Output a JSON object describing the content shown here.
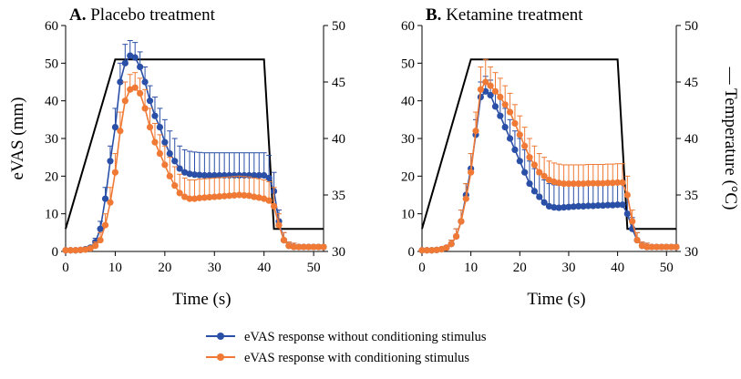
{
  "chart_data": [
    {
      "type": "line",
      "panel_letter": "A.",
      "title": "Placebo treatment",
      "xlabel": "Time (s)",
      "ylabel": "eVAS (mm)",
      "y2label": "— Temperature (°C)",
      "xlim": [
        0,
        52
      ],
      "ylim": [
        0,
        60
      ],
      "y2lim": [
        30,
        50
      ],
      "xticks": [
        0,
        10,
        20,
        30,
        40,
        50
      ],
      "yticks": [
        0,
        10,
        20,
        30,
        40,
        50,
        60
      ],
      "y2ticks": [
        30,
        35,
        40,
        45,
        50
      ],
      "series": [
        {
          "name": "eVAS response without conditioning stimulus",
          "color": "#2a4fa6",
          "x": [
            0,
            1,
            2,
            3,
            4,
            5,
            6,
            7,
            8,
            9,
            10,
            11,
            12,
            13,
            14,
            15,
            16,
            17,
            18,
            19,
            20,
            21,
            22,
            23,
            24,
            25,
            26,
            27,
            28,
            29,
            30,
            31,
            32,
            33,
            34,
            35,
            36,
            37,
            38,
            39,
            40,
            41,
            42,
            43,
            44,
            45,
            46,
            47,
            48,
            49,
            50,
            51,
            52
          ],
          "y": [
            0.3,
            0.3,
            0.3,
            0.4,
            0.6,
            1.0,
            2.5,
            6,
            14,
            24,
            33,
            45,
            50,
            52,
            51.5,
            49,
            45,
            40,
            36,
            33,
            29,
            26,
            24,
            22,
            21,
            20.6,
            20.4,
            20.3,
            20.2,
            20.2,
            20.2,
            20.2,
            20.2,
            20.2,
            20.2,
            20.2,
            20.2,
            20.2,
            20.2,
            20.2,
            20.2,
            19.5,
            16,
            8,
            3,
            1.5,
            1.2,
            1.2,
            1.2,
            1.2,
            1.2,
            1.2,
            1.2
          ],
          "err": [
            0,
            0,
            0,
            0,
            0.3,
            0.5,
            1,
            2,
            3,
            4,
            5,
            5,
            5,
            4,
            4,
            4,
            4,
            4,
            5,
            5,
            6,
            6,
            6,
            6,
            6,
            6,
            6,
            6,
            6,
            6,
            6,
            6,
            6,
            6,
            6,
            6,
            6,
            6,
            6,
            6,
            6,
            6,
            5,
            3,
            2,
            1,
            1,
            0.5,
            0.5,
            0.5,
            0.5,
            0.5,
            0.5
          ]
        },
        {
          "name": "eVAS response with conditioning stimulus",
          "color": "#f07a35",
          "x": [
            0,
            1,
            2,
            3,
            4,
            5,
            6,
            7,
            8,
            9,
            10,
            11,
            12,
            13,
            14,
            15,
            16,
            17,
            18,
            19,
            20,
            21,
            22,
            23,
            24,
            25,
            26,
            27,
            28,
            29,
            30,
            31,
            32,
            33,
            34,
            35,
            36,
            37,
            38,
            39,
            40,
            41,
            42,
            43,
            44,
            45,
            46,
            47,
            48,
            49,
            50,
            51,
            52
          ],
          "y": [
            0.3,
            0.3,
            0.3,
            0.4,
            0.5,
            0.8,
            1.5,
            3,
            7,
            13,
            21,
            32,
            40,
            43,
            43.5,
            42,
            38,
            33,
            29,
            26,
            23,
            20,
            17.5,
            15.5,
            14.5,
            14.0,
            14.0,
            14.2,
            14.3,
            14.4,
            14.5,
            14.6,
            14.7,
            14.8,
            14.9,
            15.0,
            14.9,
            14.8,
            14.5,
            14.3,
            14.0,
            13.5,
            12,
            7,
            3,
            1.5,
            1.2,
            1.2,
            1.2,
            1.2,
            1.2,
            1.2,
            1.2
          ],
          "err": [
            0,
            0,
            0,
            0,
            0.3,
            0.5,
            1,
            2,
            3,
            4,
            5,
            5,
            5,
            4,
            4,
            4,
            5,
            5,
            5,
            5,
            5,
            5,
            5,
            5,
            5,
            5,
            5,
            5,
            5,
            5,
            5,
            5,
            5,
            5,
            5,
            5,
            5,
            5,
            5,
            5,
            5,
            5,
            5,
            3,
            2,
            1,
            1,
            0.5,
            0.5,
            0.5,
            0.5,
            0.5,
            0.5
          ]
        },
        {
          "name": "Temperature",
          "axis": "right",
          "color": "#000000",
          "x": [
            0,
            10,
            40,
            42,
            52
          ],
          "y": [
            32,
            47,
            47,
            32,
            32
          ]
        }
      ]
    },
    {
      "type": "line",
      "panel_letter": "B.",
      "title": "Ketamine treatment",
      "xlabel": "Time (s)",
      "ylabel": "",
      "y2label": "— Temperature (°C)",
      "xlim": [
        0,
        52
      ],
      "ylim": [
        0,
        60
      ],
      "y2lim": [
        30,
        50
      ],
      "xticks": [
        0,
        10,
        20,
        30,
        40,
        50
      ],
      "yticks": [
        0,
        10,
        20,
        30,
        40,
        50,
        60
      ],
      "y2ticks": [
        30,
        35,
        40,
        45,
        50
      ],
      "series": [
        {
          "name": "eVAS response without conditioning stimulus",
          "color": "#2a4fa6",
          "x": [
            0,
            1,
            2,
            3,
            4,
            5,
            6,
            7,
            8,
            9,
            10,
            11,
            12,
            13,
            14,
            15,
            16,
            17,
            18,
            19,
            20,
            21,
            22,
            23,
            24,
            25,
            26,
            27,
            28,
            29,
            30,
            31,
            32,
            33,
            34,
            35,
            36,
            37,
            38,
            39,
            40,
            41,
            42,
            43,
            44,
            45,
            46,
            47,
            48,
            49,
            50,
            51,
            52
          ],
          "y": [
            0.3,
            0.3,
            0.3,
            0.4,
            0.6,
            1.0,
            2,
            4,
            8,
            15,
            22,
            31,
            41,
            42.5,
            41.5,
            38.5,
            36,
            33,
            30,
            27,
            24,
            21,
            18,
            16,
            14.5,
            13,
            12,
            11.7,
            11.6,
            11.7,
            11.8,
            11.9,
            12.0,
            12.0,
            12.1,
            12.1,
            12.2,
            12.2,
            12.3,
            12.3,
            12.4,
            12.4,
            10,
            6,
            3,
            1.5,
            1.2,
            1.2,
            1.2,
            1.2,
            1.2,
            1.2,
            1.2
          ],
          "err": [
            0,
            0,
            0,
            0,
            0.3,
            0.5,
            1,
            2,
            3,
            3,
            4,
            4,
            4,
            4,
            4,
            4,
            5,
            5,
            5,
            5,
            6,
            6,
            6,
            6,
            6,
            6,
            6,
            6,
            6,
            6,
            6,
            6,
            6,
            6,
            6,
            6,
            6,
            6,
            6,
            6,
            6,
            6,
            5,
            3,
            2,
            1,
            1,
            0.5,
            0.5,
            0.5,
            0.5,
            0.5,
            0.5
          ]
        },
        {
          "name": "eVAS response with conditioning stimulus",
          "color": "#f07a35",
          "x": [
            0,
            1,
            2,
            3,
            4,
            5,
            6,
            7,
            8,
            9,
            10,
            11,
            12,
            13,
            14,
            15,
            16,
            17,
            18,
            19,
            20,
            21,
            22,
            23,
            24,
            25,
            26,
            27,
            28,
            29,
            30,
            31,
            32,
            33,
            34,
            35,
            36,
            37,
            38,
            39,
            40,
            41,
            42,
            43,
            44,
            45,
            46,
            47,
            48,
            49,
            50,
            51,
            52
          ],
          "y": [
            0.3,
            0.3,
            0.3,
            0.4,
            0.6,
            1.0,
            2,
            4,
            8,
            14,
            21,
            32,
            43,
            45,
            44,
            42.5,
            41,
            39,
            37,
            34,
            31,
            28,
            25,
            23,
            21,
            20,
            19,
            18.5,
            18.2,
            18.0,
            18.0,
            18.0,
            18.0,
            18.0,
            18.1,
            18.1,
            18.1,
            18.1,
            18.2,
            18.2,
            18.3,
            18.3,
            15,
            8,
            3,
            1.5,
            1.2,
            1.2,
            1.2,
            1.2,
            1.2,
            1.2,
            1.2
          ],
          "err": [
            0,
            0,
            0,
            0,
            0.3,
            0.5,
            1,
            2,
            3,
            4,
            5,
            5,
            6,
            6,
            5,
            5,
            5,
            5,
            5,
            5,
            5,
            5,
            5,
            5,
            5,
            5,
            5,
            5,
            5,
            5,
            5,
            5,
            5,
            5,
            5,
            5,
            5,
            5,
            5,
            5,
            5,
            5,
            5,
            3,
            2,
            1,
            1,
            0.5,
            0.5,
            0.5,
            0.5,
            0.5,
            0.5
          ]
        },
        {
          "name": "Temperature",
          "axis": "right",
          "color": "#000000",
          "x": [
            0,
            10,
            40,
            42,
            52
          ],
          "y": [
            32,
            47,
            47,
            32,
            32
          ]
        }
      ]
    }
  ],
  "legend": {
    "items": [
      {
        "label": "eVAS response without conditioning stimulus",
        "color": "#2a4fa6"
      },
      {
        "label": "eVAS response with conditioning stimulus",
        "color": "#f07a35"
      }
    ]
  }
}
